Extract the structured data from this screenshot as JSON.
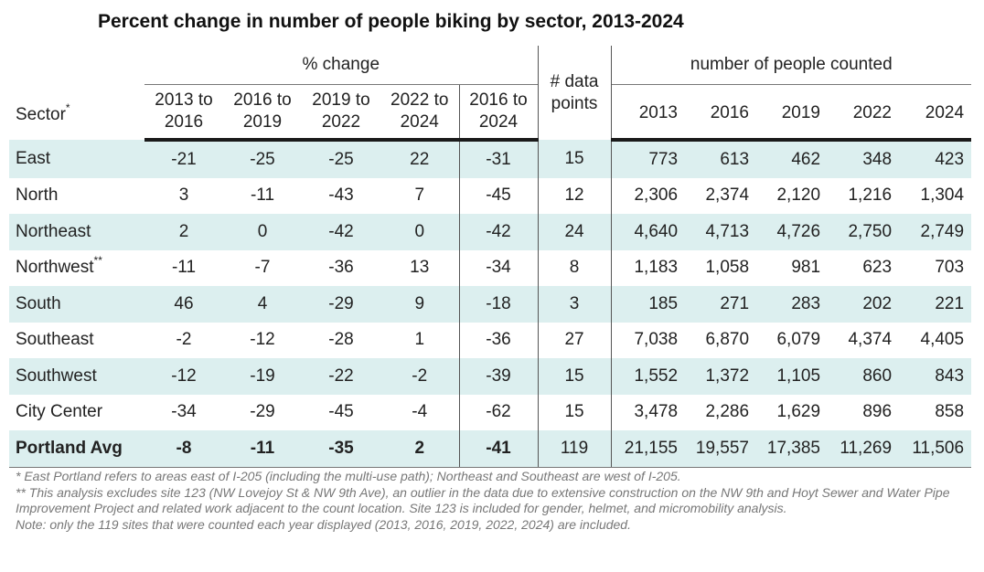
{
  "title": "Percent change in number of people biking by sector, 2013-2024",
  "headers": {
    "pct_group": "% change",
    "count_group": "number of people counted",
    "sector": "Sector",
    "sector_mark": "*",
    "pct_cols": [
      "2013 to 2016",
      "2016 to 2019",
      "2019 to 2022",
      "2022 to 2024",
      "2016 to 2024"
    ],
    "data_points": "# data points",
    "years": [
      "2013",
      "2016",
      "2019",
      "2022",
      "2024"
    ]
  },
  "rows": [
    {
      "sector": "East",
      "mark": "",
      "pct": [
        "-21",
        "-25",
        "-25",
        "22",
        "-31"
      ],
      "points": "15",
      "counts": [
        "773",
        "613",
        "462",
        "348",
        "423"
      ]
    },
    {
      "sector": "North",
      "mark": "",
      "pct": [
        "3",
        "-11",
        "-43",
        "7",
        "-45"
      ],
      "points": "12",
      "counts": [
        "2,306",
        "2,374",
        "2,120",
        "1,216",
        "1,304"
      ]
    },
    {
      "sector": "Northeast",
      "mark": "",
      "pct": [
        "2",
        "0",
        "-42",
        "0",
        "-42"
      ],
      "points": "24",
      "counts": [
        "4,640",
        "4,713",
        "4,726",
        "2,750",
        "2,749"
      ]
    },
    {
      "sector": "Northwest",
      "mark": "**",
      "pct": [
        "-11",
        "-7",
        "-36",
        "13",
        "-34"
      ],
      "points": "8",
      "counts": [
        "1,183",
        "1,058",
        "981",
        "623",
        "703"
      ]
    },
    {
      "sector": "South",
      "mark": "",
      "pct": [
        "46",
        "4",
        "-29",
        "9",
        "-18"
      ],
      "points": "3",
      "counts": [
        "185",
        "271",
        "283",
        "202",
        "221"
      ]
    },
    {
      "sector": "Southeast",
      "mark": "",
      "pct": [
        "-2",
        "-12",
        "-28",
        "1",
        "-36"
      ],
      "points": "27",
      "counts": [
        "7,038",
        "6,870",
        "6,079",
        "4,374",
        "4,405"
      ]
    },
    {
      "sector": "Southwest",
      "mark": "",
      "pct": [
        "-12",
        "-19",
        "-22",
        "-2",
        "-39"
      ],
      "points": "15",
      "counts": [
        "1,552",
        "1,372",
        "1,105",
        "860",
        "843"
      ]
    },
    {
      "sector": "City Center",
      "mark": "",
      "pct": [
        "-34",
        "-29",
        "-45",
        "-4",
        "-62"
      ],
      "points": "15",
      "counts": [
        "3,478",
        "2,286",
        "1,629",
        "896",
        "858"
      ]
    }
  ],
  "avg": {
    "sector": "Portland Avg",
    "pct": [
      "-8",
      "-11",
      "-35",
      "2",
      "-41"
    ],
    "points": "119",
    "counts": [
      "21,155",
      "19,557",
      "17,385",
      "11,269",
      "11,506"
    ]
  },
  "notes": [
    "* East Portland refers to areas east of I-205 (including the multi-use path); Northeast and Southeast are west of I-205.",
    "** This analysis excludes site 123 (NW Lovejoy St & NW 9th Ave), an outlier in the data due to extensive construction on the NW 9th and Hoyt Sewer and Water Pipe Improvement Project and related work adjacent to the count location. Site 123 is included for gender, helmet, and micromobility analysis.",
    "Note: only the 119 sites that were counted each year displayed (2013, 2016, 2019, 2022, 2024) are included."
  ]
}
